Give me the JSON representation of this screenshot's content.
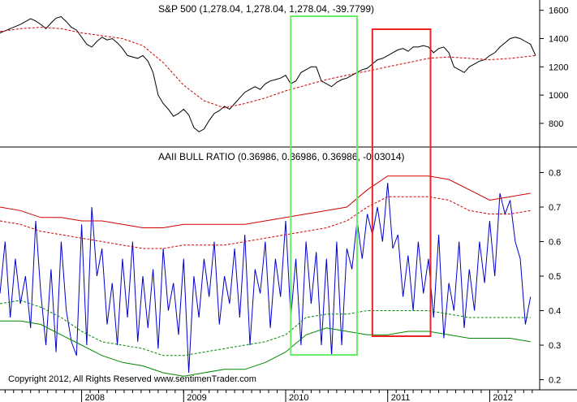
{
  "chart_data": [
    {
      "type": "line",
      "title": "S&P 500 (1,278.04, 1,278.04, 1,278.04, -39.7799)",
      "ylim": [
        650,
        1650
      ],
      "yticks": [
        "1600",
        "1400",
        "1200",
        "1000",
        "800"
      ],
      "ytick_values": [
        1600,
        1400,
        1200,
        1000,
        800
      ],
      "x_range": [
        2007.2,
        2012.45
      ],
      "series": [
        {
          "name": "S&P 500",
          "color": "#000000",
          "style": "solid",
          "x": [
            2007.2,
            2007.3,
            2007.4,
            2007.45,
            2007.5,
            2007.55,
            2007.6,
            2007.65,
            2007.7,
            2007.75,
            2007.8,
            2007.85,
            2007.9,
            2007.95,
            2008.0,
            2008.05,
            2008.1,
            2008.15,
            2008.2,
            2008.25,
            2008.3,
            2008.35,
            2008.4,
            2008.45,
            2008.5,
            2008.55,
            2008.6,
            2008.65,
            2008.7,
            2008.75,
            2008.8,
            2008.85,
            2008.9,
            2008.95,
            2009.0,
            2009.05,
            2009.1,
            2009.15,
            2009.2,
            2009.25,
            2009.3,
            2009.35,
            2009.4,
            2009.45,
            2009.5,
            2009.55,
            2009.6,
            2009.65,
            2009.7,
            2009.75,
            2009.8,
            2009.85,
            2009.9,
            2009.95,
            2010.0,
            2010.05,
            2010.1,
            2010.15,
            2010.2,
            2010.25,
            2010.3,
            2010.35,
            2010.4,
            2010.45,
            2010.5,
            2010.55,
            2010.6,
            2010.65,
            2010.7,
            2010.75,
            2010.8,
            2010.85,
            2010.9,
            2010.95,
            2011.0,
            2011.05,
            2011.1,
            2011.15,
            2011.2,
            2011.25,
            2011.3,
            2011.35,
            2011.4,
            2011.45,
            2011.5,
            2011.55,
            2011.6,
            2011.65,
            2011.7,
            2011.75,
            2011.8,
            2011.85,
            2011.9,
            2011.95,
            2012.0,
            2012.05,
            2012.1,
            2012.15,
            2012.2,
            2012.25,
            2012.3,
            2012.35,
            2012.4,
            2012.45
          ],
          "values": [
            1440,
            1470,
            1500,
            1520,
            1540,
            1525,
            1500,
            1470,
            1510,
            1545,
            1555,
            1520,
            1480,
            1460,
            1410,
            1360,
            1340,
            1380,
            1410,
            1390,
            1400,
            1370,
            1330,
            1280,
            1270,
            1260,
            1280,
            1240,
            1160,
            1000,
            940,
            900,
            850,
            870,
            900,
            860,
            770,
            740,
            760,
            820,
            870,
            890,
            920,
            900,
            940,
            980,
            1020,
            1040,
            1060,
            1040,
            1080,
            1100,
            1110,
            1120,
            1140,
            1080,
            1100,
            1160,
            1180,
            1200,
            1200,
            1100,
            1080,
            1060,
            1090,
            1110,
            1120,
            1140,
            1160,
            1180,
            1190,
            1220,
            1250,
            1260,
            1280,
            1300,
            1320,
            1330,
            1310,
            1340,
            1340,
            1350,
            1340,
            1300,
            1330,
            1340,
            1300,
            1200,
            1180,
            1160,
            1200,
            1220,
            1240,
            1250,
            1280,
            1300,
            1340,
            1370,
            1400,
            1410,
            1400,
            1380,
            1360,
            1280
          ]
        },
        {
          "name": "Moving average",
          "color": "#d00000",
          "style": "dashed",
          "x": [
            2007.2,
            2007.4,
            2007.6,
            2007.8,
            2008.0,
            2008.2,
            2008.4,
            2008.6,
            2008.8,
            2009.0,
            2009.2,
            2009.4,
            2009.6,
            2009.8,
            2010.0,
            2010.2,
            2010.4,
            2010.6,
            2010.8,
            2011.0,
            2011.2,
            2011.4,
            2011.6,
            2011.8,
            2012.0,
            2012.2,
            2012.45
          ],
          "values": [
            1450,
            1470,
            1480,
            1470,
            1440,
            1420,
            1400,
            1350,
            1230,
            1070,
            960,
            910,
            940,
            980,
            1030,
            1070,
            1110,
            1140,
            1170,
            1200,
            1230,
            1260,
            1270,
            1260,
            1250,
            1260,
            1280
          ]
        }
      ]
    },
    {
      "type": "line",
      "title": "AAII BULL RATIO (0.36986, 0.36986, 0.36986, -0.03014)",
      "ylim": [
        0.18,
        0.86
      ],
      "yticks": [
        "0.8",
        "0.7",
        "0.6",
        "0.5",
        "0.4",
        "0.3",
        "0.2"
      ],
      "ytick_values": [
        0.8,
        0.7,
        0.6,
        0.5,
        0.4,
        0.3,
        0.2
      ],
      "x_range": [
        2007.2,
        2012.45
      ],
      "xticks": [
        "2008",
        "2009",
        "2010",
        "2011",
        "2012"
      ],
      "xtick_values": [
        2008.0,
        2009.0,
        2010.0,
        2011.0,
        2012.0
      ],
      "series": [
        {
          "name": "Bull ratio",
          "color": "#0000cc",
          "style": "solid",
          "x": [
            2007.2,
            2007.25,
            2007.3,
            2007.35,
            2007.4,
            2007.45,
            2007.5,
            2007.55,
            2007.6,
            2007.65,
            2007.7,
            2007.75,
            2007.8,
            2007.85,
            2007.9,
            2007.95,
            2008.0,
            2008.05,
            2008.1,
            2008.15,
            2008.2,
            2008.25,
            2008.3,
            2008.35,
            2008.4,
            2008.45,
            2008.5,
            2008.55,
            2008.6,
            2008.65,
            2008.7,
            2008.75,
            2008.8,
            2008.85,
            2008.9,
            2008.95,
            2009.0,
            2009.05,
            2009.1,
            2009.15,
            2009.2,
            2009.25,
            2009.3,
            2009.35,
            2009.4,
            2009.45,
            2009.5,
            2009.55,
            2009.6,
            2009.65,
            2009.7,
            2009.75,
            2009.8,
            2009.85,
            2009.9,
            2009.95,
            2010.0,
            2010.05,
            2010.1,
            2010.15,
            2010.2,
            2010.25,
            2010.3,
            2010.35,
            2010.4,
            2010.45,
            2010.5,
            2010.55,
            2010.6,
            2010.65,
            2010.7,
            2010.75,
            2010.8,
            2010.85,
            2010.9,
            2010.95,
            2011.0,
            2011.05,
            2011.1,
            2011.15,
            2011.2,
            2011.25,
            2011.3,
            2011.35,
            2011.4,
            2011.45,
            2011.5,
            2011.55,
            2011.6,
            2011.65,
            2011.7,
            2011.75,
            2011.8,
            2011.85,
            2011.9,
            2011.95,
            2012.0,
            2012.05,
            2012.1,
            2012.15,
            2012.2,
            2012.25,
            2012.3,
            2012.35,
            2012.4
          ],
          "values": [
            0.45,
            0.6,
            0.38,
            0.55,
            0.42,
            0.5,
            0.35,
            0.66,
            0.45,
            0.3,
            0.52,
            0.28,
            0.6,
            0.4,
            0.31,
            0.27,
            0.65,
            0.3,
            0.7,
            0.5,
            0.58,
            0.36,
            0.48,
            0.3,
            0.55,
            0.38,
            0.6,
            0.31,
            0.5,
            0.35,
            0.52,
            0.29,
            0.58,
            0.4,
            0.48,
            0.33,
            0.55,
            0.22,
            0.5,
            0.38,
            0.55,
            0.44,
            0.6,
            0.36,
            0.5,
            0.42,
            0.58,
            0.38,
            0.62,
            0.3,
            0.52,
            0.45,
            0.6,
            0.35,
            0.55,
            0.44,
            0.66,
            0.38,
            0.55,
            0.3,
            0.6,
            0.42,
            0.57,
            0.3,
            0.55,
            0.27,
            0.6,
            0.3,
            0.58,
            0.52,
            0.66,
            0.55,
            0.68,
            0.62,
            0.7,
            0.6,
            0.77,
            0.58,
            0.62,
            0.44,
            0.56,
            0.4,
            0.6,
            0.45,
            0.55,
            0.38,
            0.62,
            0.32,
            0.48,
            0.4,
            0.6,
            0.35,
            0.52,
            0.4,
            0.6,
            0.48,
            0.66,
            0.5,
            0.74,
            0.68,
            0.72,
            0.6,
            0.55,
            0.36,
            0.44
          ]
        },
        {
          "name": "Upper band",
          "color": "#d00000",
          "style": "solid",
          "x": [
            2007.2,
            2007.4,
            2007.6,
            2007.8,
            2008.0,
            2008.2,
            2008.4,
            2008.6,
            2008.8,
            2009.0,
            2009.2,
            2009.4,
            2009.6,
            2009.8,
            2010.0,
            2010.2,
            2010.4,
            2010.6,
            2010.8,
            2011.0,
            2011.2,
            2011.4,
            2011.6,
            2011.8,
            2012.0,
            2012.2,
            2012.4
          ],
          "values": [
            0.7,
            0.69,
            0.67,
            0.67,
            0.66,
            0.66,
            0.65,
            0.64,
            0.64,
            0.65,
            0.65,
            0.65,
            0.65,
            0.66,
            0.67,
            0.68,
            0.69,
            0.7,
            0.75,
            0.79,
            0.79,
            0.79,
            0.78,
            0.75,
            0.72,
            0.73,
            0.74
          ]
        },
        {
          "name": "Upper band (inner)",
          "color": "#d00000",
          "style": "dashed",
          "x": [
            2007.2,
            2007.4,
            2007.6,
            2007.8,
            2008.0,
            2008.2,
            2008.4,
            2008.6,
            2008.8,
            2009.0,
            2009.2,
            2009.4,
            2009.6,
            2009.8,
            2010.0,
            2010.2,
            2010.4,
            2010.6,
            2010.8,
            2011.0,
            2011.2,
            2011.4,
            2011.6,
            2011.8,
            2012.0,
            2012.2,
            2012.4
          ],
          "values": [
            0.66,
            0.65,
            0.63,
            0.62,
            0.61,
            0.6,
            0.59,
            0.58,
            0.58,
            0.59,
            0.59,
            0.59,
            0.6,
            0.61,
            0.62,
            0.63,
            0.64,
            0.66,
            0.7,
            0.73,
            0.73,
            0.73,
            0.72,
            0.69,
            0.68,
            0.68,
            0.69
          ]
        },
        {
          "name": "Lower band (inner)",
          "color": "#008800",
          "style": "dashed",
          "x": [
            2007.2,
            2007.4,
            2007.6,
            2007.8,
            2008.0,
            2008.2,
            2008.4,
            2008.6,
            2008.8,
            2009.0,
            2009.2,
            2009.4,
            2009.6,
            2009.8,
            2010.0,
            2010.2,
            2010.4,
            2010.6,
            2010.8,
            2011.0,
            2011.2,
            2011.4,
            2011.6,
            2011.8,
            2012.0,
            2012.2,
            2012.4
          ],
          "values": [
            0.42,
            0.43,
            0.41,
            0.38,
            0.34,
            0.31,
            0.3,
            0.29,
            0.27,
            0.27,
            0.28,
            0.29,
            0.3,
            0.31,
            0.33,
            0.38,
            0.39,
            0.39,
            0.4,
            0.4,
            0.4,
            0.4,
            0.39,
            0.38,
            0.38,
            0.38,
            0.38
          ]
        },
        {
          "name": "Lower band",
          "color": "#008800",
          "style": "solid",
          "x": [
            2007.2,
            2007.4,
            2007.6,
            2007.8,
            2008.0,
            2008.2,
            2008.4,
            2008.6,
            2008.8,
            2009.0,
            2009.2,
            2009.4,
            2009.6,
            2009.8,
            2010.0,
            2010.2,
            2010.4,
            2010.6,
            2010.8,
            2011.0,
            2011.2,
            2011.4,
            2011.6,
            2011.8,
            2012.0,
            2012.2,
            2012.4
          ],
          "values": [
            0.37,
            0.37,
            0.36,
            0.33,
            0.3,
            0.27,
            0.25,
            0.24,
            0.22,
            0.21,
            0.22,
            0.23,
            0.23,
            0.25,
            0.28,
            0.33,
            0.35,
            0.34,
            0.33,
            0.33,
            0.34,
            0.34,
            0.33,
            0.32,
            0.32,
            0.32,
            0.31
          ]
        }
      ]
    }
  ],
  "highlights": [
    {
      "name": "highlight-2010",
      "color": "#66ee66",
      "x_range": [
        2010.05,
        2010.7
      ]
    },
    {
      "name": "highlight-2011",
      "color": "#ee2222",
      "x_range": [
        2010.85,
        2011.42
      ]
    }
  ],
  "footer": "Copyright 2012, All Rights Reserved  www.sentimenTrader.com"
}
